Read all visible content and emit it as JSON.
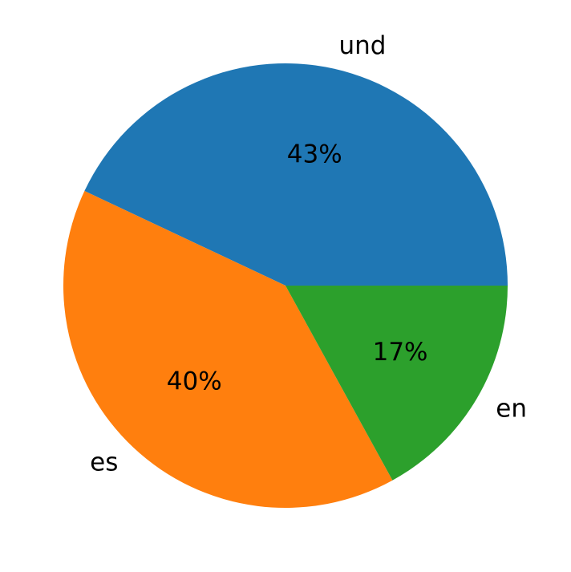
{
  "chart_data": {
    "type": "pie",
    "categories": [
      "und",
      "es",
      "en"
    ],
    "values": [
      43,
      40,
      17
    ],
    "value_labels": [
      "43%",
      "40%",
      "17%"
    ],
    "colors": [
      "#1f77b4",
      "#ff7f0e",
      "#2ca02c"
    ]
  }
}
